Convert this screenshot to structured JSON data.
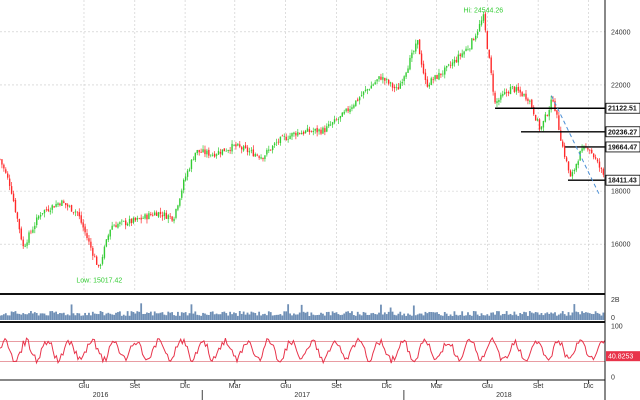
{
  "chart_data": [
    {
      "type": "candlestick",
      "panel": "price",
      "y_ticks": [
        "24000",
        "22000",
        "18000",
        "16000"
      ],
      "y_tick_values": [
        24000,
        22000,
        18000,
        16000
      ],
      "ylim": [
        14200,
        25200
      ],
      "x_range": [
        "2016-01-01",
        "2018-12-31"
      ],
      "colors": {
        "up": "#33cc33",
        "down": "#ff2a2a",
        "grid": "#c8c8c8",
        "trend": "#4a8fd6"
      },
      "annotations": [
        {
          "id": "high",
          "text": "Hi: 24544.26",
          "value": 24544.26,
          "date": "2018-05-25",
          "color": "#33cc33"
        },
        {
          "id": "low",
          "text": "Low: 15017.42",
          "value": 15017.42,
          "date": "2016-06-27",
          "color": "#33cc33"
        }
      ],
      "levels": [
        {
          "label": "21122.51",
          "value": 21122.51,
          "from": "2018-06-15",
          "to": "2018-12-31"
        },
        {
          "label": "20236.27",
          "value": 20236.27,
          "from": "2018-08-01",
          "to": "2018-12-31"
        },
        {
          "label": "19664.47",
          "value": 19664.47,
          "from": "2018-10-20",
          "to": "2018-12-31"
        },
        {
          "label": "18411.43",
          "value": 18411.43,
          "from": "2018-10-25",
          "to": "2018-12-31"
        }
      ],
      "trendline": {
        "from": [
          "2018-09-25",
          21600
        ],
        "to": [
          "2018-12-20",
          17900
        ]
      },
      "anchors": [
        [
          "2016-01-01",
          19200
        ],
        [
          "2016-01-20",
          18200
        ],
        [
          "2016-02-12",
          15900
        ],
        [
          "2016-03-15",
          17200
        ],
        [
          "2016-04-20",
          17600
        ],
        [
          "2016-05-20",
          17200
        ],
        [
          "2016-06-24",
          15300
        ],
        [
          "2016-06-27",
          15017.42
        ],
        [
          "2016-07-20",
          16700
        ],
        [
          "2016-09-05",
          16900
        ],
        [
          "2016-10-10",
          17200
        ],
        [
          "2016-11-10",
          17000
        ],
        [
          "2016-12-01",
          18500
        ],
        [
          "2016-12-20",
          19500
        ],
        [
          "2017-01-20",
          19400
        ],
        [
          "2017-03-01",
          19700
        ],
        [
          "2017-04-20",
          19300
        ],
        [
          "2017-05-20",
          19900
        ],
        [
          "2017-06-20",
          20200
        ],
        [
          "2017-08-10",
          20300
        ],
        [
          "2017-09-10",
          20800
        ],
        [
          "2017-10-20",
          21700
        ],
        [
          "2017-11-20",
          22300
        ],
        [
          "2017-12-20",
          21800
        ],
        [
          "2018-01-26",
          23600
        ],
        [
          "2018-02-10",
          22000
        ],
        [
          "2018-03-20",
          22600
        ],
        [
          "2018-05-01",
          23500
        ],
        [
          "2018-05-25",
          24544.26
        ],
        [
          "2018-06-15",
          21300
        ],
        [
          "2018-07-15",
          21900
        ],
        [
          "2018-08-15",
          21500
        ],
        [
          "2018-09-05",
          20300
        ],
        [
          "2018-09-28",
          21500
        ],
        [
          "2018-10-15",
          19700
        ],
        [
          "2018-10-30",
          18450
        ],
        [
          "2018-11-15",
          19400
        ],
        [
          "2018-12-01",
          19700
        ],
        [
          "2018-12-31",
          18500
        ]
      ]
    },
    {
      "type": "bar",
      "panel": "volume",
      "y_ticks": [
        "2B",
        "0"
      ],
      "color": "#6f8fb5"
    },
    {
      "type": "line",
      "panel": "oscillator",
      "y_ticks": [
        "100",
        "0"
      ],
      "ylim": [
        0,
        100
      ],
      "bands": [
        70,
        30
      ],
      "current_label": "40.8253",
      "current_value": 40.8253,
      "color": "#e8334a"
    },
    {
      "panel": "x_axis",
      "x_ticks": [
        {
          "label": "Giu",
          "date": "2016-06-01"
        },
        {
          "label": "Set",
          "date": "2016-09-01"
        },
        {
          "label": "Dic",
          "date": "2016-12-01"
        },
        {
          "label": "Mar",
          "date": "2017-03-01"
        },
        {
          "label": "Giu",
          "date": "2017-06-01"
        },
        {
          "label": "Set",
          "date": "2017-09-01"
        },
        {
          "label": "Dic",
          "date": "2017-12-01"
        },
        {
          "label": "Mar",
          "date": "2018-03-01"
        },
        {
          "label": "Giu",
          "date": "2018-06-01"
        },
        {
          "label": "Set",
          "date": "2018-09-01"
        },
        {
          "label": "Dic",
          "date": "2018-12-01"
        }
      ],
      "year_labels": [
        {
          "label": "2016",
          "date": "2016-07-01"
        },
        {
          "label": "2017",
          "date": "2017-07-01"
        },
        {
          "label": "2018",
          "date": "2018-07-01"
        }
      ]
    }
  ]
}
